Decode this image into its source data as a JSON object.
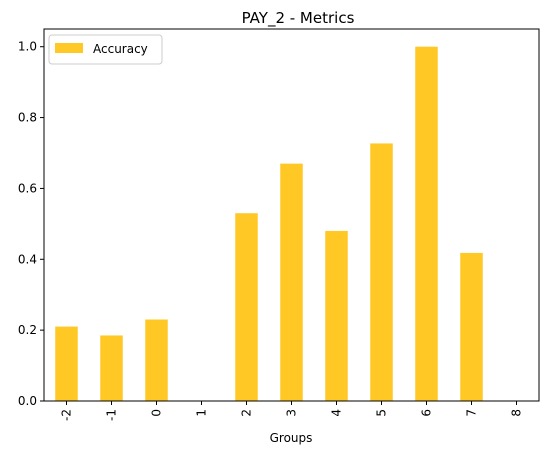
{
  "chart_data": {
    "type": "bar",
    "title": "PAY_2 - Metrics",
    "xlabel": "Groups",
    "ylabel": "",
    "categories": [
      "-2",
      "-1",
      "0",
      "1",
      "2",
      "3",
      "4",
      "5",
      "6",
      "7",
      "8"
    ],
    "series": [
      {
        "name": "Accuracy",
        "color": "#FFC825",
        "values": [
          0.21,
          0.185,
          0.23,
          0.0,
          0.53,
          0.67,
          0.48,
          0.727,
          1.0,
          0.418,
          0.0
        ]
      }
    ],
    "ylim": [
      0,
      1.05
    ],
    "yticks": [
      0.0,
      0.2,
      0.4,
      0.6,
      0.8,
      1.0
    ],
    "ytick_labels": [
      "0.0",
      "0.2",
      "0.4",
      "0.6",
      "0.8",
      "1.0"
    ],
    "legend_position": "top-left",
    "grid": false
  }
}
